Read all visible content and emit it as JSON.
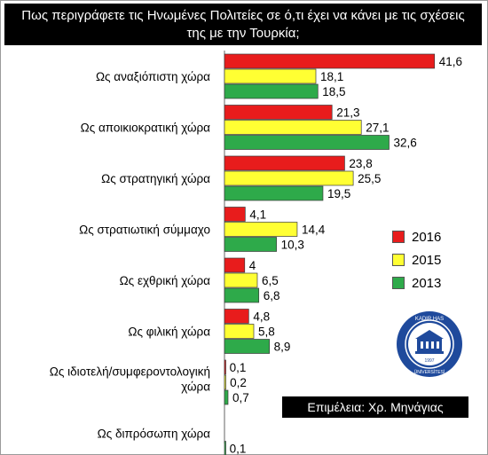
{
  "title": "Πως περιγράφετε τις Ηνωμένες Πολιτείες σε ό,τι έχει να κάνει με τις σχέσεις της με την Τουρκία;",
  "credit": "Επιμέλεια: Χρ. Μηνάγιας",
  "seal": {
    "text": "KADIR HAS ÜNİVERSİTESİ",
    "year": "1997"
  },
  "colors": {
    "2016": "#e81c1c",
    "2015": "#ffff33",
    "2013": "#2eaa4a"
  },
  "chart_data": {
    "type": "bar",
    "orientation": "horizontal",
    "title": "Πως περιγράφετε τις Ηνωμένες Πολιτείες σε ό,τι έχει να κάνει με τις σχέσεις της με την Τουρκία;",
    "categories": [
      "Ως αναξιόπιστη χώρα",
      "Ως αποικιοκρατική χώρα",
      "Ως στρατηγική χώρα",
      "Ως στρατιωτική σύμμαχο",
      "Ως εχθρική χώρα",
      "Ως φιλική χώρα",
      "Ως ιδιοτελή/συμφεροντολογική χώρα",
      "Ως διπρόσωπη χώρα"
    ],
    "series": [
      {
        "name": "2016",
        "color": "#e81c1c",
        "values": [
          41.6,
          21.3,
          23.8,
          4.1,
          4,
          4.8,
          0.1,
          null
        ]
      },
      {
        "name": "2015",
        "color": "#ffff33",
        "values": [
          18.1,
          27.1,
          25.5,
          14.4,
          6.5,
          5.8,
          0.2,
          null
        ]
      },
      {
        "name": "2013",
        "color": "#2eaa4a",
        "values": [
          18.5,
          32.6,
          19.5,
          10.3,
          6.8,
          8.9,
          0.7,
          0.1
        ]
      }
    ],
    "value_labels": [
      [
        "41,6",
        "18,1",
        "18,5"
      ],
      [
        "21,3",
        "27,1",
        "32,6"
      ],
      [
        "23,8",
        "25,5",
        "19,5"
      ],
      [
        "4,1",
        "14,4",
        "10,3"
      ],
      [
        "4",
        "6,5",
        "6,8"
      ],
      [
        "4,8",
        "5,8",
        "8,9"
      ],
      [
        "0,1",
        "0,2",
        "0,7"
      ],
      [
        "",
        "",
        "0,1"
      ]
    ],
    "legend": [
      "2016",
      "2015",
      "2013"
    ],
    "legend_position": "right",
    "xlim": [
      0,
      42
    ],
    "grid": false
  }
}
